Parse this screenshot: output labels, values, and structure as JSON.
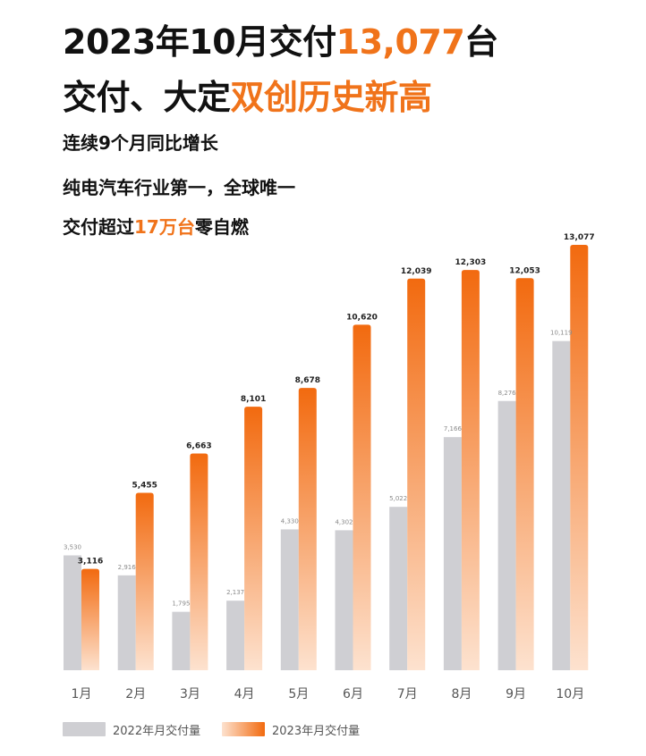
{
  "headline": {
    "line1": {
      "prefix": "2023年10月交付",
      "accent": "13,077",
      "suffix": "台"
    },
    "line2": {
      "prefix": "交付、大定",
      "accent": "双创历史新高"
    },
    "line3": "连续9个月同比增长",
    "line4": "纯电汽车行业第一，全球唯一",
    "line5": {
      "prefix": "交付超过",
      "accent": "17万台",
      "suffix": "零自燃"
    }
  },
  "colors": {
    "accent": "#f0731a",
    "bar_2022": "#cfcfd3",
    "bar_2023_top": "#f26a0f",
    "bar_2023_bottom": "#fde2cf"
  },
  "chart_data": {
    "type": "bar",
    "categories": [
      "1月",
      "2月",
      "3月",
      "4月",
      "5月",
      "6月",
      "7月",
      "8月",
      "9月",
      "10月"
    ],
    "series": [
      {
        "name": "2022年月交付量",
        "values": [
          3530,
          2916,
          1795,
          2137,
          4330,
          4302,
          5022,
          7166,
          8276,
          10119
        ],
        "labels": [
          "3,530",
          "2,916",
          "1,795",
          "2,137",
          "4,330",
          "4,302",
          "5,022",
          "7,166",
          "8,276",
          "10,119"
        ]
      },
      {
        "name": "2023年月交付量",
        "values": [
          3116,
          5455,
          6663,
          8101,
          8678,
          10620,
          12039,
          12303,
          12053,
          13077
        ],
        "labels": [
          "3,116",
          "5,455",
          "6,663",
          "8,101",
          "8,678",
          "10,620",
          "12,039",
          "12,303",
          "12,053",
          "13,077"
        ]
      }
    ],
    "ylim": [
      0,
      13077
    ],
    "grid": false,
    "legend_position": "bottom-left"
  }
}
